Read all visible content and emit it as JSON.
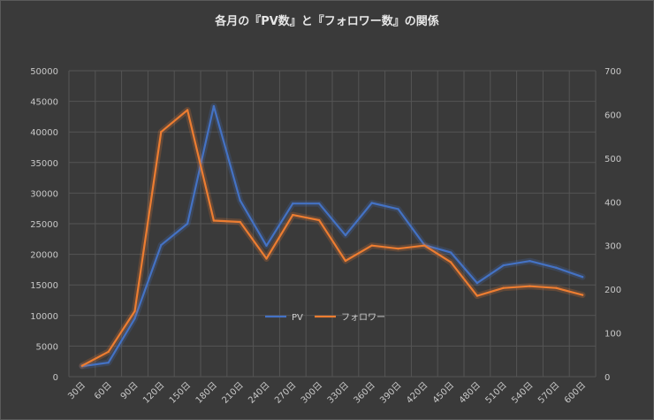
{
  "chart_data": {
    "type": "line",
    "title": "各月の『PV数』と『フォロワー数』の関係",
    "categories": [
      "30日",
      "60日",
      "90日",
      "120日",
      "150日",
      "180日",
      "210日",
      "240日",
      "270日",
      "300日",
      "330日",
      "360日",
      "390日",
      "420日",
      "450日",
      "480日",
      "510日",
      "540日",
      "570日",
      "600日"
    ],
    "series": [
      {
        "name": "PV",
        "axis": "left",
        "color": "#4472c4",
        "values": [
          1700,
          2300,
          9500,
          21500,
          25000,
          44200,
          28800,
          21400,
          28300,
          28300,
          23100,
          28400,
          27400,
          21500,
          20300,
          15300,
          18200,
          18900,
          17800,
          16300
        ]
      },
      {
        "name": "フォロワー",
        "axis": "right",
        "color": "#ed7d31",
        "values": [
          25,
          57,
          150,
          560,
          610,
          357,
          354,
          270,
          370,
          358,
          265,
          300,
          293,
          300,
          262,
          185,
          203,
          207,
          203,
          187
        ]
      }
    ],
    "y_left": {
      "min": 0,
      "max": 50000,
      "step": 5000,
      "ticks": [
        "0",
        "5000",
        "10000",
        "15000",
        "20000",
        "25000",
        "30000",
        "35000",
        "40000",
        "45000",
        "50000"
      ]
    },
    "y_right": {
      "min": 0,
      "max": 700,
      "step": 100,
      "ticks": [
        "0",
        "100",
        "200",
        "300",
        "400",
        "500",
        "600",
        "700"
      ]
    },
    "grid": true,
    "legend_position": "inside-bottom-center"
  }
}
